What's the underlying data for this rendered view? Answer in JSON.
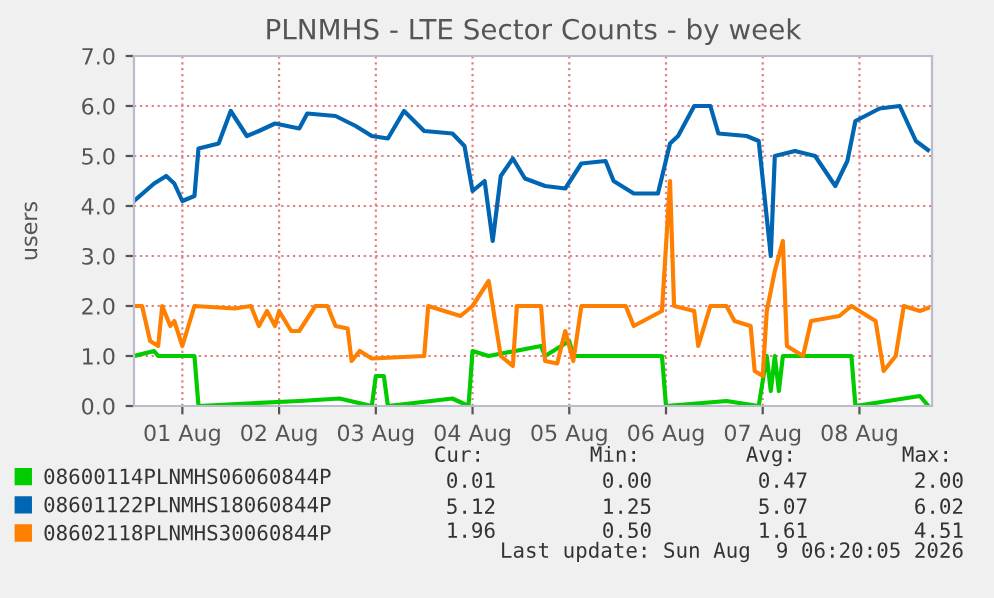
{
  "chart_data": {
    "type": "line",
    "title": "PLNMHS - LTE Sector Counts - by week",
    "ylabel": "users",
    "xlim": [
      "2026-07-31T12:00",
      "2026-08-08T18:00"
    ],
    "xticks": [
      {
        "value": "2026-08-01",
        "label": "01 Aug"
      },
      {
        "value": "2026-08-02",
        "label": "02 Aug"
      },
      {
        "value": "2026-08-03",
        "label": "03 Aug"
      },
      {
        "value": "2026-08-04",
        "label": "04 Aug"
      },
      {
        "value": "2026-08-05",
        "label": "05 Aug"
      },
      {
        "value": "2026-08-06",
        "label": "06 Aug"
      },
      {
        "value": "2026-08-07",
        "label": "07 Aug"
      },
      {
        "value": "2026-08-08",
        "label": "08 Aug"
      }
    ],
    "ylim": [
      0,
      7
    ],
    "yticks": [
      {
        "value": 0,
        "label": "0.0"
      },
      {
        "value": 1,
        "label": "1.0"
      },
      {
        "value": 2,
        "label": "2.0"
      },
      {
        "value": 3,
        "label": "3.0"
      },
      {
        "value": 4,
        "label": "4.0"
      },
      {
        "value": 5,
        "label": "5.0"
      },
      {
        "value": 6,
        "label": "6.0"
      },
      {
        "value": 7,
        "label": "7.0"
      }
    ],
    "grid": true,
    "legend": "bottom",
    "line_style": "solid",
    "marker": "none",
    "series": [
      {
        "name": "08600114PLNMHS06060844P",
        "color": "#00cc00",
        "x": [
          "2026-07-31T12:00",
          "2026-07-31T17:00",
          "2026-07-31T18:00",
          "2026-08-01T03:00",
          "2026-08-01T04:00",
          "2026-08-01T16:00",
          "2026-08-02T05:00",
          "2026-08-02T15:00",
          "2026-08-02T23:00",
          "2026-08-03T00:00",
          "2026-08-03T02:00",
          "2026-08-03T03:00",
          "2026-08-03T19:00",
          "2026-08-03T23:00",
          "2026-08-04T00:00",
          "2026-08-04T04:00",
          "2026-08-04T17:00",
          "2026-08-04T18:00",
          "2026-08-05T00:00",
          "2026-08-05T01:00",
          "2026-08-05T23:00",
          "2026-08-06T00:00",
          "2026-08-06T15:00",
          "2026-08-06T23:00",
          "2026-08-07T01:00",
          "2026-08-07T02:00",
          "2026-08-07T03:00",
          "2026-08-07T04:00",
          "2026-08-07T05:00",
          "2026-08-07T22:00",
          "2026-08-07T23:00",
          "2026-08-08T15:00",
          "2026-08-08T17:00"
        ],
        "values": [
          1.0,
          1.1,
          1.0,
          1.0,
          0.0,
          0.05,
          0.1,
          0.15,
          0.0,
          0.6,
          0.6,
          0.0,
          0.15,
          0.0,
          1.1,
          1.0,
          1.2,
          1.0,
          1.3,
          1.0,
          1.0,
          0.0,
          0.1,
          0.0,
          1.0,
          0.3,
          1.0,
          0.3,
          1.0,
          1.0,
          0.0,
          0.2,
          0.01
        ]
      },
      {
        "name": "08601122PLNMHS18060844P",
        "color": "#0066b3",
        "x": [
          "2026-07-31T12:00",
          "2026-07-31T17:00",
          "2026-07-31T20:00",
          "2026-07-31T22:00",
          "2026-08-01T00:00",
          "2026-08-01T03:00",
          "2026-08-01T04:00",
          "2026-08-01T09:00",
          "2026-08-01T12:00",
          "2026-08-01T16:00",
          "2026-08-01T19:00",
          "2026-08-01T23:00",
          "2026-08-02T05:00",
          "2026-08-02T07:00",
          "2026-08-02T14:00",
          "2026-08-02T19:00",
          "2026-08-02T23:00",
          "2026-08-03T03:00",
          "2026-08-03T07:00",
          "2026-08-03T12:00",
          "2026-08-03T19:00",
          "2026-08-03T22:00",
          "2026-08-04T00:00",
          "2026-08-04T03:00",
          "2026-08-04T05:00",
          "2026-08-04T07:00",
          "2026-08-04T10:00",
          "2026-08-04T13:00",
          "2026-08-04T18:00",
          "2026-08-04T23:00",
          "2026-08-05T03:00",
          "2026-08-05T09:00",
          "2026-08-05T11:00",
          "2026-08-05T16:00",
          "2026-08-05T22:00",
          "2026-08-06T01:00",
          "2026-08-06T03:00",
          "2026-08-06T07:00",
          "2026-08-06T11:00",
          "2026-08-06T13:00",
          "2026-08-06T20:00",
          "2026-08-06T23:00",
          "2026-08-07T02:00",
          "2026-08-07T03:00",
          "2026-08-07T08:00",
          "2026-08-07T13:00",
          "2026-08-07T18:00",
          "2026-08-07T21:00",
          "2026-08-07T23:00",
          "2026-08-08T05:00",
          "2026-08-08T10:00",
          "2026-08-08T14:00",
          "2026-08-08T17:00"
        ],
        "values": [
          4.1,
          4.45,
          4.6,
          4.45,
          4.1,
          4.2,
          5.15,
          5.25,
          5.9,
          5.4,
          5.5,
          5.65,
          5.55,
          5.85,
          5.8,
          5.6,
          5.4,
          5.35,
          5.9,
          5.5,
          5.45,
          5.2,
          4.3,
          4.5,
          3.3,
          4.6,
          4.95,
          4.55,
          4.4,
          4.35,
          4.85,
          4.9,
          4.5,
          4.25,
          4.25,
          5.25,
          5.4,
          6.0,
          6.0,
          5.45,
          5.4,
          5.3,
          3.0,
          5.0,
          5.1,
          5.0,
          4.4,
          4.9,
          5.7,
          5.95,
          6.0,
          5.3,
          5.12
        ]
      },
      {
        "name": "08602118PLNMHS30060844P",
        "color": "#ff8000",
        "x": [
          "2026-07-31T12:00",
          "2026-07-31T14:00",
          "2026-07-31T16:00",
          "2026-07-31T18:00",
          "2026-07-31T19:00",
          "2026-07-31T21:00",
          "2026-07-31T22:00",
          "2026-08-01T00:00",
          "2026-08-01T03:00",
          "2026-08-01T13:00",
          "2026-08-01T17:00",
          "2026-08-01T19:00",
          "2026-08-01T21:00",
          "2026-08-01T23:00",
          "2026-08-02T00:00",
          "2026-08-02T03:00",
          "2026-08-02T05:00",
          "2026-08-02T09:00",
          "2026-08-02T12:00",
          "2026-08-02T14:00",
          "2026-08-02T17:00",
          "2026-08-02T18:00",
          "2026-08-02T20:00",
          "2026-08-02T23:00",
          "2026-08-03T12:00",
          "2026-08-03T13:00",
          "2026-08-03T21:00",
          "2026-08-04T00:00",
          "2026-08-04T04:00",
          "2026-08-04T07:00",
          "2026-08-04T10:00",
          "2026-08-04T11:00",
          "2026-08-04T17:00",
          "2026-08-04T18:00",
          "2026-08-04T21:00",
          "2026-08-04T23:00",
          "2026-08-05T01:00",
          "2026-08-05T03:00",
          "2026-08-05T14:00",
          "2026-08-05T16:00",
          "2026-08-05T23:00",
          "2026-08-06T01:00",
          "2026-08-06T02:00",
          "2026-08-06T07:00",
          "2026-08-06T08:00",
          "2026-08-06T11:00",
          "2026-08-06T15:00",
          "2026-08-06T17:00",
          "2026-08-06T21:00",
          "2026-08-06T22:00",
          "2026-08-07T00:00",
          "2026-08-07T01:00",
          "2026-08-07T03:00",
          "2026-08-07T05:00",
          "2026-08-07T06:00",
          "2026-08-07T10:00",
          "2026-08-07T12:00",
          "2026-08-07T19:00",
          "2026-08-07T22:00",
          "2026-08-08T04:00",
          "2026-08-08T06:00",
          "2026-08-08T09:00",
          "2026-08-08T11:00",
          "2026-08-08T15:00",
          "2026-08-08T17:00"
        ],
        "values": [
          2.0,
          2.0,
          1.3,
          1.2,
          2.0,
          1.6,
          1.7,
          1.2,
          2.0,
          1.95,
          2.0,
          1.6,
          1.9,
          1.6,
          1.9,
          1.5,
          1.5,
          2.0,
          2.0,
          1.6,
          1.55,
          0.9,
          1.1,
          0.95,
          1.0,
          2.0,
          1.8,
          2.0,
          2.5,
          1.0,
          0.8,
          2.0,
          2.0,
          0.9,
          0.85,
          1.5,
          0.9,
          2.0,
          2.0,
          1.6,
          1.9,
          4.5,
          2.0,
          1.9,
          1.2,
          2.0,
          2.0,
          1.7,
          1.6,
          0.7,
          0.6,
          1.9,
          2.7,
          3.3,
          1.2,
          1.0,
          1.7,
          1.8,
          2.0,
          1.7,
          0.7,
          1.0,
          2.0,
          1.9,
          1.96
        ]
      }
    ],
    "annotations": [
      "Cur:",
      "Min:",
      "Avg:",
      "Max:",
      "0.01",
      "0.00",
      "0.47",
      "2.00",
      "5.12",
      "1.25",
      "5.07",
      "6.02",
      "1.96",
      "0.50",
      "1.61",
      "4.51",
      "Last update: Sun Aug  9 06:20:05 2026"
    ]
  }
}
